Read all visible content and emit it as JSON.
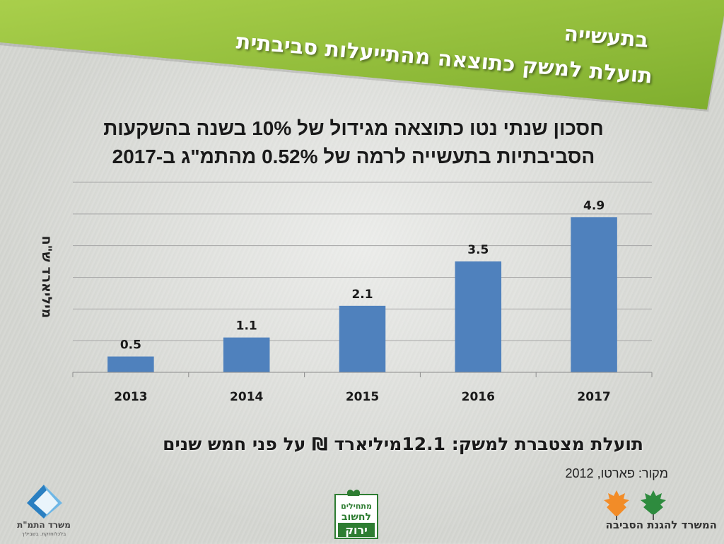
{
  "header": {
    "line1": "תועלת למשק כתוצאה מהתייעלות סביבתית",
    "line2": "בתעשייה"
  },
  "subtitle": {
    "line1": "חסכון שנתי נטו כתוצאה מגידול של 10% בשנה בהשקעות",
    "line2": "הסביבתיות בתעשייה לרמה של 0.52% מהתמ\"ג ב-2017"
  },
  "chart_data": {
    "type": "bar",
    "categories": [
      "2013",
      "2014",
      "2015",
      "2016",
      "2017"
    ],
    "values": [
      0.5,
      1.1,
      2.1,
      3.5,
      4.9
    ],
    "data_labels": [
      "0.5",
      "1.1",
      "2.1",
      "3.5",
      "4.9"
    ],
    "ylabel": "מיליארד ש\"ח",
    "ylim": [
      0,
      6
    ],
    "y_gridline_step": 1,
    "y_tick_labels_shown": false,
    "grid": true,
    "bar_color": "#4f81bd"
  },
  "summary": "תועלת מצטברת למשק: 12.1מיליארד ₪ על פני חמש שנים",
  "source": "מקור: פארטו, 2012",
  "logos": {
    "left": {
      "name": "משרד התמ\"ת",
      "tagline": "בלכלוחזקת. בשביליך",
      "icon": "triangle-logo-icon"
    },
    "center": {
      "text_lines": [
        "מתחילים",
        "לחשוב",
        "ירוק"
      ],
      "icon": "green-badge-logo"
    },
    "right": {
      "name": "המשרד להגנת הסביבה",
      "icon": "leaves-logo-icon"
    }
  },
  "colors": {
    "banner_green": "#8fb93a",
    "banner_green_light": "#a9cf4b",
    "bar": "#4f81bd",
    "gridline": "#a6a6a6"
  }
}
